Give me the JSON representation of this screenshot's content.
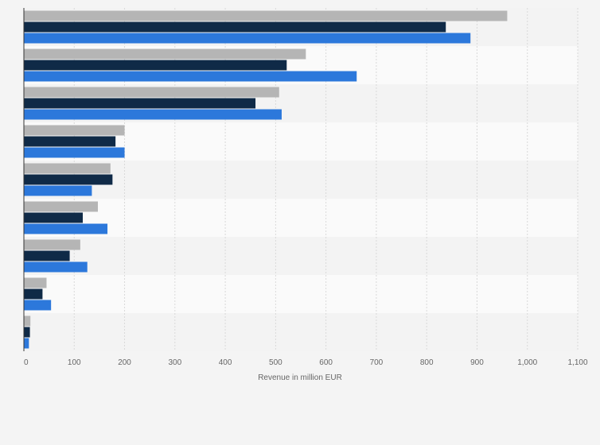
{
  "chart_data": {
    "type": "bar",
    "orientation": "horizontal",
    "title": "",
    "xlabel": "Revenue in million EUR",
    "ylabel": "",
    "xlim": [
      0,
      1100
    ],
    "x_ticks": [
      0,
      100,
      200,
      300,
      400,
      500,
      600,
      700,
      800,
      900,
      1000,
      1100
    ],
    "x_tick_labels": [
      "0",
      "100",
      "200",
      "300",
      "400",
      "500",
      "600",
      "700",
      "800",
      "900",
      "1,000",
      "1,100"
    ],
    "grid": true,
    "legend": "none",
    "categories": [
      "",
      "",
      "",
      "",
      "",
      "",
      "",
      "",
      ""
    ],
    "series": [
      {
        "color": "#b5b5b5",
        "values": [
          960,
          560,
          507,
          200,
          172,
          147,
          112,
          45,
          13
        ]
      },
      {
        "color": "#0f2a47",
        "values": [
          838,
          522,
          460,
          182,
          176,
          117,
          91,
          37,
          12
        ]
      },
      {
        "color": "#2c78db",
        "values": [
          887,
          661,
          512,
          200,
          135,
          166,
          126,
          54,
          10
        ]
      }
    ]
  }
}
